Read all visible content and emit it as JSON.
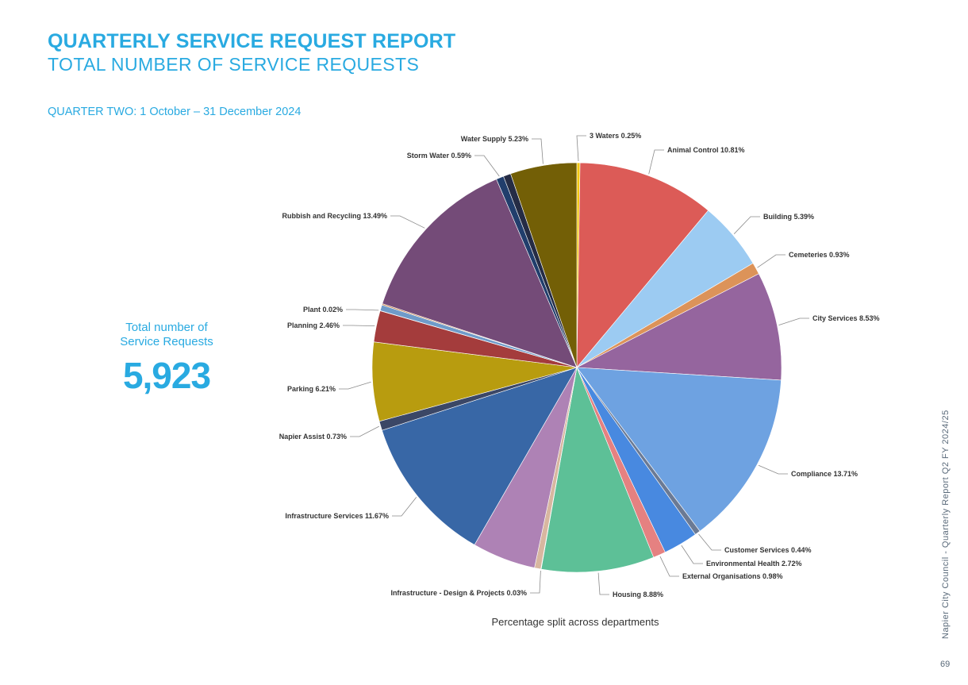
{
  "header": {
    "title": "QUARTERLY SERVICE REQUEST REPORT",
    "subtitle": "TOTAL NUMBER OF SERVICE REQUESTS",
    "quarter": "QUARTER TWO: 1 October – 31 December 2024"
  },
  "summary": {
    "label_line1": "Total number of",
    "label_line2": "Service Requests",
    "value": "5,923"
  },
  "caption": "Percentage split across departments",
  "footer": {
    "side_text": "Napier City Council - Quarterly Report Q2 FY 2024/25",
    "page_number": "69"
  },
  "colors": {
    "accent": "#29aae1"
  },
  "chart_data": {
    "type": "pie",
    "slices": [
      {
        "label": "3 Waters 0.25%",
        "value": 0.25,
        "color": "#f2c811"
      },
      {
        "label": "Animal Control 10.81%",
        "value": 10.81,
        "color": "#dc5b57"
      },
      {
        "label": "Building 5.39%",
        "value": 5.39,
        "color": "#9ccbf2"
      },
      {
        "label": "Cemeteries 0.93%",
        "value": 0.93,
        "color": "#dc9359"
      },
      {
        "label": "City Services 8.53%",
        "value": 8.53,
        "color": "#95659e"
      },
      {
        "label": "Compliance 13.71%",
        "value": 13.71,
        "color": "#6ea2e1"
      },
      {
        "label": "Customer Services 0.44%",
        "value": 0.44,
        "color": "#6b7a94"
      },
      {
        "label": "Environmental Health 2.72%",
        "value": 2.72,
        "color": "#4889e0"
      },
      {
        "label": "External Organisations 0.98%",
        "value": 0.98,
        "color": "#e58181"
      },
      {
        "label": "Housing 8.88%",
        "value": 8.88,
        "color": "#5dc097"
      },
      {
        "label": "Infrastructure - Design & Projects 0.03%",
        "value": 0.03,
        "color": "#b5a2c8"
      },
      {
        "label": "",
        "value": 0.5,
        "color": "#d8b7a0"
      },
      {
        "label": "",
        "value": 5.0,
        "color": "#ae82b5"
      },
      {
        "label": "Infrastructure Services 11.67%",
        "value": 11.67,
        "color": "#3867a6"
      },
      {
        "label": "Napier Assist 0.73%",
        "value": 0.73,
        "color": "#3b4766"
      },
      {
        "label": "Parking 6.21%",
        "value": 6.21,
        "color": "#b89c0f"
      },
      {
        "label": "Planning 2.46%",
        "value": 2.46,
        "color": "#a43c3c"
      },
      {
        "label": "Plant 0.02%",
        "value": 0.02,
        "color": "#6f9bc9"
      },
      {
        "label": "",
        "value": 0.46,
        "color": "#6f9bc9"
      },
      {
        "label": "",
        "value": 0.1,
        "color": "#c9844f"
      },
      {
        "label": "Rubbish and Recycling 13.49%",
        "value": 13.49,
        "color": "#744b78"
      },
      {
        "label": "Storm Water 0.59%",
        "value": 0.59,
        "color": "#213e6c"
      },
      {
        "label": "",
        "value": 0.59,
        "color": "#252c45"
      },
      {
        "label": "Water Supply 5.23%",
        "value": 5.23,
        "color": "#735f06"
      }
    ]
  }
}
